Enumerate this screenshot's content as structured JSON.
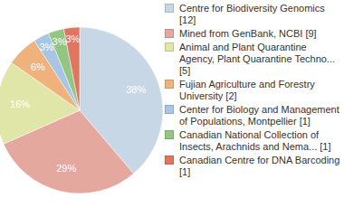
{
  "chart_data": {
    "type": "pie",
    "categories": [
      "Centre for Biodiversity Genomics [12]",
      "Mined from GenBank, NCBI [9]",
      "Animal and Plant Quarantine Agency, Plant Quarantine Techno... [5]",
      "Fujian Agriculture and Forestry University [2]",
      "Center for Biology and Management of Populations, Montpellier [1]",
      "Canadian National Collection of Insects, Arachnids and Nema... [1]",
      "Canadian Centre for DNA Barcoding [1]"
    ],
    "values": [
      38,
      29,
      16,
      6,
      3,
      3,
      3
    ],
    "value_labels": [
      "38%",
      "29%",
      "16%",
      "6%",
      "3%",
      "3%",
      "3%"
    ],
    "colors": [
      "#c8d7e6",
      "#e4a89f",
      "#dfe6a8",
      "#f0b27c",
      "#a9c5e3",
      "#94c683",
      "#e0765f"
    ],
    "data_labels": true,
    "legend": "right"
  }
}
